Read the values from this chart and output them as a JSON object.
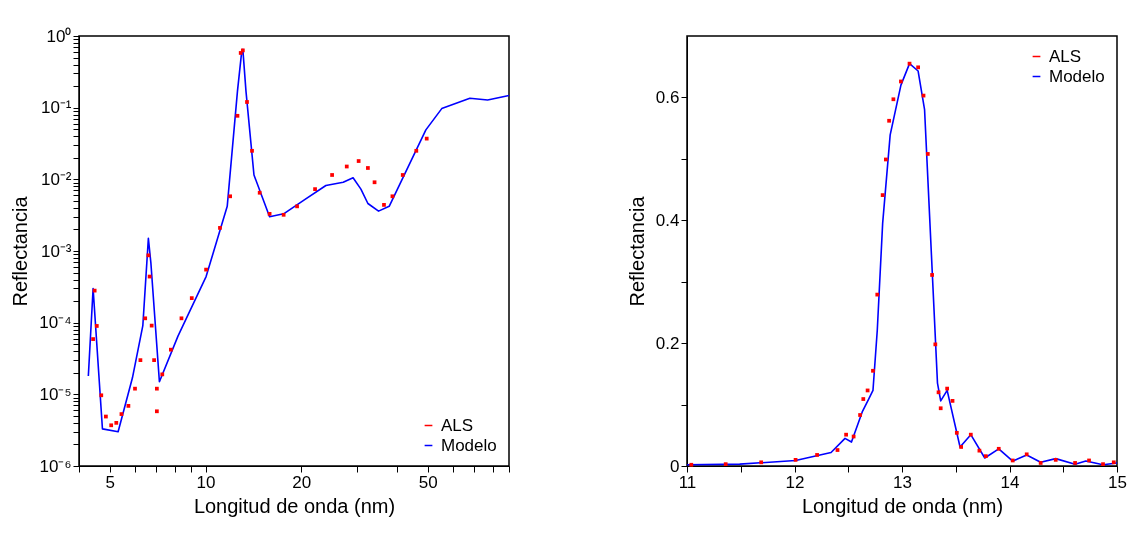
{
  "chart_data": [
    {
      "type": "line",
      "xlabel": "Longitud de onda (nm)",
      "ylabel": "Reflectancia",
      "log": "xy",
      "grid": false,
      "legend": "bottom right",
      "xlim": [
        4,
        90
      ],
      "ylim": [
        1e-06,
        1
      ],
      "xticks": [
        {
          "value": 4,
          "label": null
        },
        5,
        {
          "value": 6,
          "label": null
        },
        {
          "value": 7,
          "label": null
        },
        {
          "value": 8,
          "label": null
        },
        {
          "value": 9,
          "label": null
        },
        10,
        20,
        {
          "value": 30,
          "label": null
        },
        {
          "value": 40,
          "label": null
        },
        50,
        {
          "value": 60,
          "label": null
        },
        {
          "value": 70,
          "label": null
        },
        {
          "value": 80,
          "label": null
        },
        {
          "value": 90,
          "label": null
        }
      ],
      "yticks": [
        {
          "value": 1e-06,
          "label": "10⁻⁶"
        },
        {
          "value": 2e-06,
          "label": null
        },
        {
          "value": 3e-06,
          "label": null
        },
        {
          "value": 4e-06,
          "label": null
        },
        {
          "value": 5e-06,
          "label": null
        },
        {
          "value": 6e-06,
          "label": null
        },
        {
          "value": 7e-06,
          "label": null
        },
        {
          "value": 8e-06,
          "label": null
        },
        {
          "value": 9e-06,
          "label": null
        },
        {
          "value": 1e-05,
          "label": "10⁻⁵"
        },
        {
          "value": 2e-05,
          "label": null
        },
        {
          "value": 3e-05,
          "label": null
        },
        {
          "value": 4e-05,
          "label": null
        },
        {
          "value": 5e-05,
          "label": null
        },
        {
          "value": 6e-05,
          "label": null
        },
        {
          "value": 7e-05,
          "label": null
        },
        {
          "value": 8e-05,
          "label": null
        },
        {
          "value": 9e-05,
          "label": null
        },
        {
          "value": 0.0001,
          "label": "10⁻⁴"
        },
        {
          "value": 0.0002,
          "label": null
        },
        {
          "value": 0.0003,
          "label": null
        },
        {
          "value": 0.0004,
          "label": null
        },
        {
          "value": 0.0005,
          "label": null
        },
        {
          "value": 0.0006,
          "label": null
        },
        {
          "value": 0.0007,
          "label": null
        },
        {
          "value": 0.0008,
          "label": null
        },
        {
          "value": 0.0009,
          "label": null
        },
        {
          "value": 0.001,
          "label": "10⁻³"
        },
        {
          "value": 0.002,
          "label": null
        },
        {
          "value": 0.003,
          "label": null
        },
        {
          "value": 0.004,
          "label": null
        },
        {
          "value": 0.005,
          "label": null
        },
        {
          "value": 0.006,
          "label": null
        },
        {
          "value": 0.007,
          "label": null
        },
        {
          "value": 0.008,
          "label": null
        },
        {
          "value": 0.009,
          "label": null
        },
        {
          "value": 0.01,
          "label": "10⁻²"
        },
        {
          "value": 0.02,
          "label": null
        },
        {
          "value": 0.03,
          "label": null
        },
        {
          "value": 0.04,
          "label": null
        },
        {
          "value": 0.05,
          "label": null
        },
        {
          "value": 0.06,
          "label": null
        },
        {
          "value": 0.07,
          "label": null
        },
        {
          "value": 0.08,
          "label": null
        },
        {
          "value": 0.09,
          "label": null
        },
        {
          "value": 0.1,
          "label": "10⁻¹"
        },
        {
          "value": 0.2,
          "label": null
        },
        {
          "value": 0.3,
          "label": null
        },
        {
          "value": 0.4,
          "label": null
        },
        {
          "value": 0.5,
          "label": null
        },
        {
          "value": 0.6,
          "label": null
        },
        {
          "value": 0.7,
          "label": null
        },
        {
          "value": 0.8,
          "label": null
        },
        {
          "value": 0.9,
          "label": null
        },
        {
          "value": 1,
          "label": "10⁰"
        }
      ],
      "series": [
        {
          "name": "ALS",
          "type": "scatter",
          "marker": "square",
          "color": "#ff0000",
          "x": [
            4.43,
            4.48,
            4.55,
            4.7,
            4.86,
            5.05,
            5.24,
            5.44,
            5.72,
            6.0,
            6.24,
            6.46,
            6.61,
            6.67,
            6.77,
            6.89,
            7.03,
            7.03,
            7.31,
            7.78,
            8.4,
            9.05,
            10.04,
            11.1,
            11.95,
            12.6,
            12.9,
            13.1,
            13.5,
            14.0,
            14.8,
            15.9,
            17.6,
            19.4,
            22.1,
            25.0,
            27.8,
            30.3,
            32.4,
            34.0,
            36.4,
            38.7,
            41.7,
            46.0,
            49.6
          ],
          "values": [
            5.9e-05,
            0.00028,
            9e-05,
            9.7e-06,
            4.9e-06,
            3.7e-06,
            4e-06,
            5.3e-06,
            6.9e-06,
            1.2e-05,
            3e-05,
            0.000115,
            0.00087,
            0.00044,
            9.1e-05,
            3e-05,
            1.2e-05,
            5.8e-06,
            1.9e-05,
            4.2e-05,
            0.000115,
            0.00022,
            0.00055,
            0.0021,
            0.0058,
            0.077,
            0.58,
            0.63,
            0.12,
            0.025,
            0.0065,
            0.0033,
            0.0032,
            0.0042,
            0.0073,
            0.0115,
            0.0151,
            0.018,
            0.0144,
            0.0091,
            0.0044,
            0.0058,
            0.0115,
            0.025,
            0.037
          ]
        },
        {
          "name": "Modelo",
          "color": "#0000ff",
          "x": [
            4.28,
            4.43,
            4.74,
            5.31,
            5.89,
            6.35,
            6.61,
            6.73,
            7.16,
            8.19,
            10.04,
            11.7,
            12.6,
            13.0,
            13.1,
            13.4,
            14.2,
            15.9,
            17.6,
            20.5,
            23.9,
            27.1,
            29.1,
            30.8,
            32.4,
            35.0,
            37.8,
            49.3,
            55.3,
            67.8,
            77.1,
            90
          ],
          "values": [
            1.8e-05,
            0.0003,
            3.3e-06,
            3e-06,
            1.7e-05,
            9.1e-05,
            0.0015,
            0.00069,
            1.5e-05,
            6.5e-05,
            0.00044,
            0.0042,
            0.17,
            0.62,
            0.65,
            0.17,
            0.0115,
            0.003,
            0.0033,
            0.0052,
            0.0082,
            0.0091,
            0.0105,
            0.0073,
            0.0046,
            0.0036,
            0.0042,
            0.049,
            0.097,
            0.135,
            0.128,
            0.148
          ]
        }
      ]
    },
    {
      "type": "line",
      "xlabel": "Longitud de onda (nm)",
      "ylabel": "Reflectancia",
      "grid": false,
      "legend": "top right",
      "xlim": [
        11,
        15
      ],
      "ylim": [
        0,
        0.7
      ],
      "xticks": [
        11,
        {
          "value": 11.5,
          "label": null
        },
        12,
        {
          "value": 12.5,
          "label": null
        },
        13,
        {
          "value": 13.5,
          "label": null
        },
        14,
        {
          "value": 14.5,
          "label": null
        },
        15
      ],
      "yticks": [
        0,
        {
          "value": 0.1,
          "label": null
        },
        0.2,
        {
          "value": 0.3,
          "label": null
        },
        0.4,
        {
          "value": 0.5,
          "label": null
        },
        0.6
      ],
      "series": [
        {
          "name": "ALS",
          "type": "scatter",
          "marker": "square",
          "color": "#ff0000",
          "x": [
            11.04,
            11.36,
            11.69,
            12.01,
            12.21,
            12.4,
            12.48,
            12.55,
            12.61,
            12.64,
            12.68,
            12.73,
            12.77,
            12.82,
            12.85,
            12.88,
            12.92,
            12.99,
            13.07,
            13.15,
            13.2,
            13.24,
            13.28,
            13.31,
            13.34,
            13.36,
            13.42,
            13.47,
            13.51,
            13.55,
            13.64,
            13.72,
            13.78,
            13.9,
            14.03,
            14.16,
            14.29,
            14.43,
            14.61,
            14.74,
            14.87,
            14.97
          ],
          "values": [
            0.002,
            0.003,
            0.006,
            0.01,
            0.018,
            0.026,
            0.051,
            0.048,
            0.083,
            0.109,
            0.123,
            0.155,
            0.279,
            0.441,
            0.499,
            0.562,
            0.597,
            0.626,
            0.655,
            0.649,
            0.603,
            0.508,
            0.311,
            0.198,
            0.12,
            0.094,
            0.126,
            0.106,
            0.054,
            0.031,
            0.051,
            0.025,
            0.016,
            0.028,
            0.009,
            0.019,
            0.005,
            0.01,
            0.005,
            0.009,
            0.003,
            0.006
          ]
        },
        {
          "name": "Modelo",
          "color": "#0000ff",
          "x": [
            11.0,
            11.49,
            12.01,
            12.34,
            12.47,
            12.53,
            12.63,
            12.69,
            12.73,
            12.77,
            12.82,
            12.89,
            12.99,
            13.07,
            13.15,
            13.21,
            13.26,
            13.33,
            13.36,
            13.42,
            13.54,
            13.64,
            13.77,
            13.9,
            14.03,
            14.16,
            14.29,
            14.43,
            14.61,
            14.71,
            14.87,
            15.0
          ],
          "values": [
            0.002,
            0.003,
            0.009,
            0.022,
            0.045,
            0.039,
            0.088,
            0.109,
            0.123,
            0.221,
            0.395,
            0.539,
            0.62,
            0.655,
            0.643,
            0.58,
            0.395,
            0.135,
            0.106,
            0.123,
            0.031,
            0.051,
            0.013,
            0.028,
            0.008,
            0.018,
            0.006,
            0.012,
            0.003,
            0.008,
            0.002,
            0.005
          ]
        }
      ]
    }
  ]
}
